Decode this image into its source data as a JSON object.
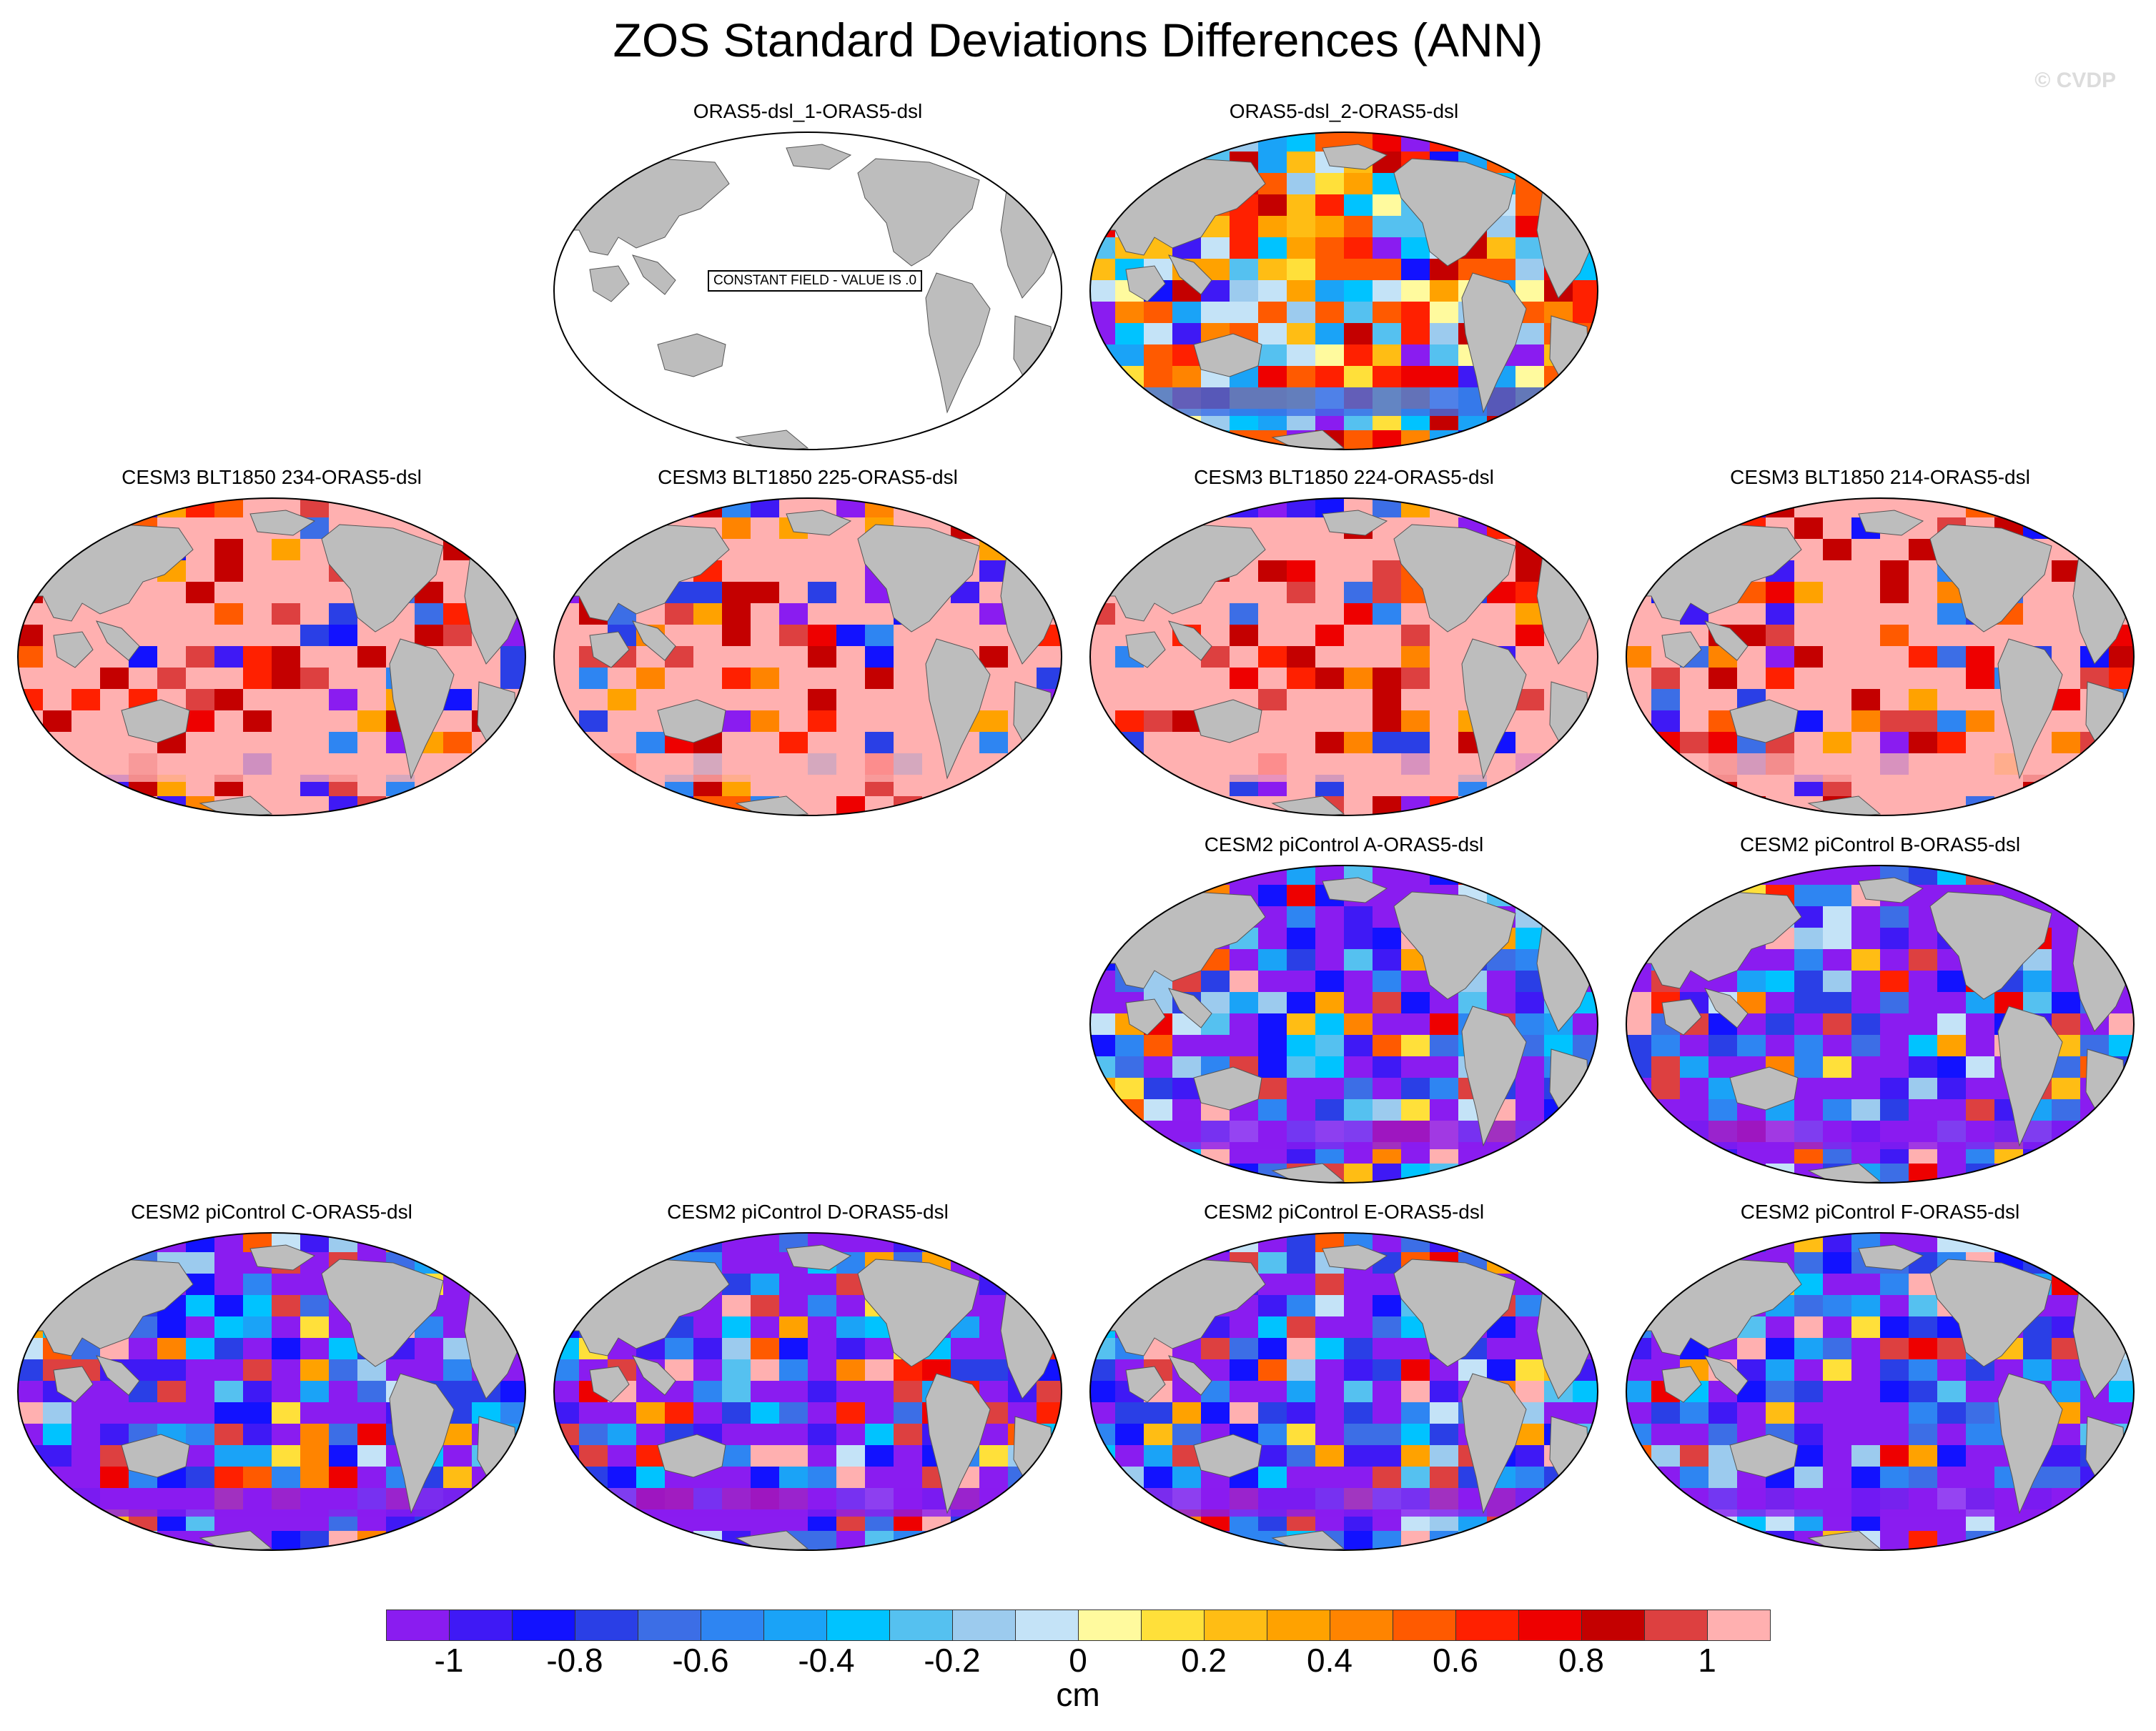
{
  "title": "ZOS Standard Deviations Differences (ANN)",
  "watermark": "© CVDP",
  "panels": [
    {
      "label": "ORAS5-dsl_1-ORAS5-dsl",
      "row": 0,
      "col": 1,
      "pattern": "constant",
      "note": "CONSTANT FIELD - VALUE IS .0"
    },
    {
      "label": "ORAS5-dsl_2-ORAS5-dsl",
      "row": 0,
      "col": 2,
      "pattern": "mixed"
    },
    {
      "label": "CESM3 BLT1850 234-ORAS5-dsl",
      "row": 1,
      "col": 0,
      "pattern": "positive"
    },
    {
      "label": "CESM3 BLT1850 225-ORAS5-dsl",
      "row": 1,
      "col": 1,
      "pattern": "positive"
    },
    {
      "label": "CESM3 BLT1850 224-ORAS5-dsl",
      "row": 1,
      "col": 2,
      "pattern": "positive"
    },
    {
      "label": "CESM3 BLT1850 214-ORAS5-dsl",
      "row": 1,
      "col": 3,
      "pattern": "positive"
    },
    {
      "label": "CESM2 piControl A-ORAS5-dsl",
      "row": 2,
      "col": 2,
      "pattern": "negative"
    },
    {
      "label": "CESM2 piControl B-ORAS5-dsl",
      "row": 2,
      "col": 3,
      "pattern": "negative"
    },
    {
      "label": "CESM2 piControl C-ORAS5-dsl",
      "row": 3,
      "col": 0,
      "pattern": "negative"
    },
    {
      "label": "CESM2 piControl D-ORAS5-dsl",
      "row": 3,
      "col": 1,
      "pattern": "negative"
    },
    {
      "label": "CESM2 piControl E-ORAS5-dsl",
      "row": 3,
      "col": 2,
      "pattern": "negative"
    },
    {
      "label": "CESM2 piControl F-ORAS5-dsl",
      "row": 3,
      "col": 3,
      "pattern": "negative"
    }
  ],
  "colorbar": {
    "colors": [
      "#8a1cf0",
      "#3f19f5",
      "#1212ff",
      "#2a3fe6",
      "#3c6ee6",
      "#2e85f2",
      "#1aa3f7",
      "#00c3ff",
      "#55c1f0",
      "#9ccbee",
      "#c4e3f7",
      "#fffa9e",
      "#ffe03a",
      "#ffbd14",
      "#ffa200",
      "#ff8400",
      "#ff5a00",
      "#ff2000",
      "#ee0000",
      "#c40000",
      "#dd4040",
      "#ffb0b0"
    ],
    "labels": [
      "-1",
      "-0.8",
      "-0.6",
      "-0.4",
      "-0.2",
      "0",
      "0.2",
      "0.4",
      "0.6",
      "0.8",
      "1"
    ],
    "units": "cm",
    "range": [
      -1,
      1
    ],
    "interval": 0.1
  }
}
